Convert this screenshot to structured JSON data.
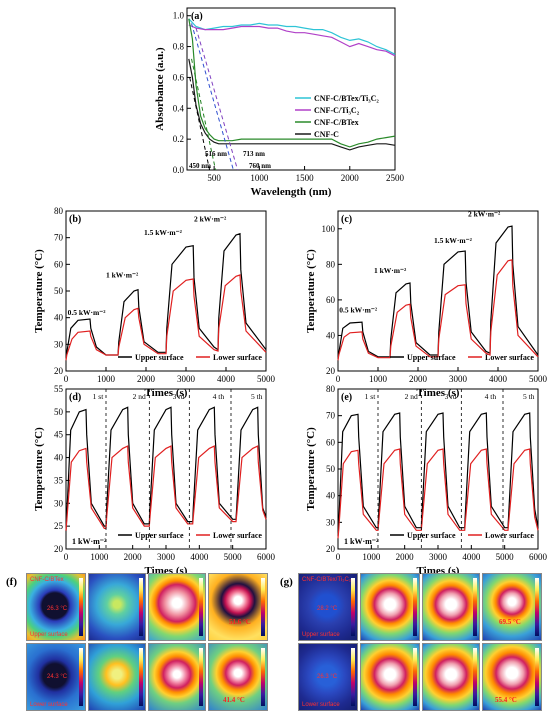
{
  "chart_data": [
    {
      "panel": "(a)",
      "type": "line",
      "xlabel": "Wavelength (nm)",
      "ylabel": "Absorbance (a.u.)",
      "xlim": [
        200,
        2500
      ],
      "ylim": [
        0,
        1.05
      ],
      "xticks": [
        500,
        1000,
        1500,
        2000,
        2500
      ],
      "yticks": [
        0.0,
        0.2,
        0.4,
        0.6,
        0.8,
        1.0
      ],
      "legend_position": "right",
      "series": [
        {
          "name": "CNF-C/BTex/Ti₃C₂",
          "color": "#2ec4d6",
          "x": [
            220,
            300,
            400,
            500,
            600,
            700,
            800,
            900,
            1000,
            1100,
            1200,
            1300,
            1400,
            1500,
            1600,
            1700,
            1800,
            1900,
            2000,
            2100,
            2200,
            2300,
            2400,
            2500
          ],
          "y": [
            0.98,
            0.93,
            0.91,
            0.92,
            0.93,
            0.93,
            0.94,
            0.94,
            0.95,
            0.94,
            0.94,
            0.93,
            0.93,
            0.92,
            0.91,
            0.91,
            0.89,
            0.86,
            0.84,
            0.85,
            0.83,
            0.8,
            0.78,
            0.75
          ]
        },
        {
          "name": "CNF-C/Ti₃C₂",
          "color": "#b040c8",
          "x": [
            220,
            300,
            400,
            500,
            600,
            700,
            800,
            900,
            1000,
            1100,
            1200,
            1300,
            1400,
            1500,
            1600,
            1700,
            1800,
            1900,
            2000,
            2100,
            2200,
            2300,
            2400,
            2500
          ],
          "y": [
            0.94,
            0.92,
            0.91,
            0.91,
            0.91,
            0.92,
            0.93,
            0.93,
            0.93,
            0.92,
            0.92,
            0.9,
            0.89,
            0.89,
            0.88,
            0.87,
            0.86,
            0.83,
            0.8,
            0.82,
            0.8,
            0.78,
            0.77,
            0.74
          ]
        },
        {
          "name": "CNF-C/BTex",
          "color": "#2a8a2a",
          "x": [
            220,
            260,
            300,
            350,
            400,
            450,
            500,
            550,
            600,
            700,
            800,
            1000,
            1200,
            1400,
            1600,
            1800,
            1900,
            2000,
            2100,
            2200,
            2300,
            2400,
            2500
          ],
          "y": [
            0.98,
            0.85,
            0.55,
            0.35,
            0.27,
            0.23,
            0.2,
            0.19,
            0.19,
            0.19,
            0.2,
            0.2,
            0.2,
            0.2,
            0.2,
            0.2,
            0.17,
            0.15,
            0.17,
            0.18,
            0.2,
            0.21,
            0.22
          ]
        },
        {
          "name": "CNF-C",
          "color": "#1a1a1a",
          "x": [
            220,
            260,
            300,
            350,
            400,
            450,
            500,
            550,
            600,
            700,
            800,
            1000,
            1200,
            1400,
            1600,
            1800,
            1900,
            2000,
            2100,
            2200,
            2300,
            2400,
            2500
          ],
          "y": [
            0.72,
            0.6,
            0.42,
            0.3,
            0.24,
            0.2,
            0.18,
            0.17,
            0.17,
            0.17,
            0.17,
            0.17,
            0.17,
            0.17,
            0.17,
            0.17,
            0.15,
            0.13,
            0.15,
            0.16,
            0.17,
            0.17,
            0.16
          ]
        }
      ],
      "annotations": [
        "450 nm",
        "516 nm",
        "713 nm",
        "760 nm"
      ]
    },
    {
      "panel": "(b)",
      "type": "line",
      "xlabel": "Times (s)",
      "ylabel": "Temperature (°C)",
      "xlim": [
        0,
        5000
      ],
      "ylim": [
        20,
        80
      ],
      "xticks": [
        0,
        1000,
        2000,
        3000,
        4000,
        5000
      ],
      "yticks": [
        20,
        30,
        40,
        50,
        60,
        70,
        80
      ],
      "legend_position": "bottom-right",
      "intensity_labels": [
        "0.5 kW·m⁻²",
        "1 kW·m⁻²",
        "1.5 kW·m⁻²",
        "2 kW·m⁻²"
      ],
      "series": [
        {
          "name": "Upper surface",
          "color": "#000000",
          "x": [
            0,
            20,
            120,
            300,
            600,
            620,
            760,
            1000,
            1300,
            1320,
            1450,
            1700,
            1800,
            1820,
            1950,
            2300,
            2500,
            2520,
            2650,
            3000,
            3180,
            3200,
            3330,
            3700,
            3800,
            3820,
            3950,
            4250,
            4350,
            4370,
            4500,
            5000
          ],
          "y": [
            25,
            27,
            36,
            39,
            39.5,
            36,
            29,
            26,
            26,
            31,
            46,
            50,
            50.5,
            44,
            31,
            27,
            27,
            36,
            60,
            66.5,
            67,
            55,
            36,
            29,
            28,
            40,
            65,
            71,
            71.5,
            58,
            38,
            28
          ]
        },
        {
          "name": "Lower surface",
          "color": "#e02020",
          "x": [
            0,
            20,
            150,
            300,
            600,
            620,
            760,
            1000,
            1300,
            1320,
            1480,
            1700,
            1800,
            1820,
            1950,
            2300,
            2500,
            2520,
            2680,
            3000,
            3180,
            3200,
            3330,
            3700,
            3800,
            3820,
            3980,
            4250,
            4350,
            4370,
            4500,
            5000
          ],
          "y": [
            24,
            26,
            32,
            34.5,
            35,
            33,
            28,
            26,
            26,
            29,
            40,
            43,
            43.5,
            40,
            30,
            26.5,
            26.5,
            33,
            50,
            54,
            54.5,
            48,
            33,
            28,
            27.5,
            36,
            52,
            55.5,
            56,
            50,
            35,
            27
          ]
        }
      ]
    },
    {
      "panel": "(c)",
      "type": "line",
      "xlabel": "Times (s)",
      "ylabel": "Temperature (°C)",
      "xlim": [
        0,
        5000
      ],
      "ylim": [
        20,
        110
      ],
      "xticks": [
        0,
        1000,
        2000,
        3000,
        4000,
        5000
      ],
      "yticks": [
        20,
        40,
        60,
        80,
        100
      ],
      "legend_position": "bottom-right",
      "intensity_labels": [
        "0.5 kW·m⁻²",
        "1 kW·m⁻²",
        "1.5 kW·m⁻²",
        "2 kW·m⁻²"
      ],
      "series": [
        {
          "name": "Upper surface",
          "color": "#000000",
          "x": [
            0,
            20,
            120,
            300,
            600,
            620,
            760,
            1000,
            1300,
            1320,
            1450,
            1700,
            1800,
            1820,
            1950,
            2300,
            2500,
            2520,
            2650,
            3000,
            3180,
            3200,
            3330,
            3700,
            3800,
            3820,
            3950,
            4250,
            4350,
            4370,
            4500,
            5000
          ],
          "y": [
            27,
            30,
            44,
            47,
            47.5,
            42,
            31,
            28,
            28,
            38,
            64,
            69,
            69.5,
            58,
            36,
            29,
            29,
            42,
            80,
            87,
            87.5,
            70,
            42,
            31,
            30,
            48,
            92,
            101,
            101.5,
            80,
            45,
            29
          ]
        },
        {
          "name": "Lower surface",
          "color": "#e02020",
          "x": [
            0,
            20,
            150,
            300,
            600,
            620,
            760,
            1000,
            1300,
            1320,
            1480,
            1700,
            1800,
            1820,
            1950,
            2300,
            2500,
            2520,
            2680,
            3000,
            3180,
            3200,
            3330,
            3700,
            3800,
            3820,
            3980,
            4250,
            4350,
            4370,
            4500,
            5000
          ],
          "y": [
            26,
            29,
            39,
            41.5,
            42,
            38,
            30,
            27.5,
            27.5,
            34,
            53,
            57,
            57.5,
            50,
            34,
            28,
            28,
            38,
            63,
            68,
            68.5,
            58,
            38,
            30,
            29,
            42,
            74,
            82,
            82.5,
            68,
            40,
            28
          ]
        }
      ]
    },
    {
      "panel": "(d)",
      "type": "line",
      "xlabel": "Times (s)",
      "ylabel": "Temperature (°C)",
      "xlim": [
        0,
        6000
      ],
      "ylim": [
        20,
        55
      ],
      "xticks": [
        0,
        1000,
        2000,
        3000,
        4000,
        5000,
        6000
      ],
      "yticks": [
        20,
        25,
        30,
        35,
        40,
        45,
        50,
        55
      ],
      "legend_position": "bottom-right",
      "intensity_label": "1 kW·m⁻²",
      "cycle_labels": [
        "1 st",
        "2 nd",
        "3 rd",
        "4 th",
        "5 th"
      ],
      "series": [
        {
          "name": "Upper surface",
          "color": "#000000",
          "x": [
            0,
            20,
            140,
            400,
            600,
            620,
            760,
            1150,
            1200,
            1220,
            1350,
            1700,
            1850,
            1870,
            2000,
            2350,
            2500,
            2520,
            2650,
            3000,
            3150,
            3170,
            3300,
            3650,
            3800,
            3820,
            3950,
            4300,
            4450,
            4470,
            4600,
            5000,
            5100,
            5120,
            5250,
            5600,
            5750,
            5770,
            5900,
            6000
          ],
          "y": [
            24,
            27,
            46,
            50,
            50.5,
            45,
            30,
            25,
            25,
            29,
            46,
            50.5,
            51,
            45,
            30,
            25.5,
            25.5,
            29,
            46,
            50.5,
            51,
            45,
            30,
            26,
            26,
            29,
            46,
            50.5,
            51,
            45,
            30,
            26.5,
            26.5,
            29,
            46,
            50.5,
            51,
            45,
            29,
            27
          ]
        },
        {
          "name": "Lower surface",
          "color": "#e02020",
          "x": [
            0,
            20,
            160,
            400,
            600,
            620,
            760,
            1150,
            1200,
            1220,
            1380,
            1700,
            1850,
            1870,
            2000,
            2350,
            2500,
            2520,
            2680,
            3000,
            3150,
            3170,
            3300,
            3650,
            3800,
            3820,
            3980,
            4300,
            4450,
            4470,
            4600,
            5000,
            5100,
            5120,
            5280,
            5600,
            5750,
            5770,
            5900,
            6000
          ],
          "y": [
            24,
            26,
            39,
            41.5,
            42,
            39,
            29,
            24.5,
            24.5,
            27,
            40,
            42,
            42.5,
            39,
            29,
            25,
            25,
            27,
            40,
            42,
            42.5,
            39,
            29,
            25.5,
            25.5,
            27,
            40,
            42,
            42.5,
            39,
            29,
            26,
            26,
            27.5,
            40,
            42,
            42.5,
            39,
            28.5,
            26.5
          ]
        }
      ]
    },
    {
      "panel": "(e)",
      "type": "line",
      "xlabel": "Times (s)",
      "ylabel": "Temperature (°C)",
      "xlim": [
        0,
        6000
      ],
      "ylim": [
        20,
        80
      ],
      "xticks": [
        0,
        1000,
        2000,
        3000,
        4000,
        5000,
        6000
      ],
      "yticks": [
        20,
        30,
        40,
        50,
        60,
        70,
        80
      ],
      "legend_position": "bottom-right",
      "intensity_label": "1 kW·m⁻²",
      "cycle_labels": [
        "1 st",
        "2 nd",
        "3 rd",
        "4 th",
        "5 th"
      ],
      "series": [
        {
          "name": "Upper surface",
          "color": "#000000",
          "x": [
            0,
            20,
            140,
            400,
            600,
            620,
            760,
            1150,
            1200,
            1220,
            1350,
            1700,
            1850,
            1870,
            2000,
            2350,
            2500,
            2520,
            2650,
            3000,
            3150,
            3170,
            3300,
            3650,
            3800,
            3820,
            3950,
            4300,
            4450,
            4470,
            4600,
            5000,
            5100,
            5120,
            5250,
            5600,
            5750,
            5770,
            5900,
            6000
          ],
          "y": [
            25,
            29,
            64,
            70,
            70.5,
            62,
            36,
            28,
            28,
            33,
            64,
            70.5,
            71,
            62,
            36,
            28,
            28,
            33,
            64,
            70.5,
            71,
            62,
            36,
            28,
            28,
            33,
            64,
            70.5,
            71,
            62,
            36,
            28,
            28,
            33,
            64,
            70.5,
            71,
            62,
            35,
            28
          ]
        },
        {
          "name": "Lower surface",
          "color": "#e02020",
          "x": [
            0,
            20,
            160,
            400,
            600,
            620,
            760,
            1150,
            1200,
            1220,
            1380,
            1700,
            1850,
            1870,
            2000,
            2350,
            2500,
            2520,
            2680,
            3000,
            3150,
            3170,
            3300,
            3650,
            3800,
            3820,
            3980,
            4300,
            4450,
            4470,
            4600,
            5000,
            5100,
            5120,
            5280,
            5600,
            5750,
            5770,
            5900,
            6000
          ],
          "y": [
            24,
            27,
            52,
            56.5,
            57,
            52,
            33,
            27,
            27,
            30,
            52,
            57,
            57.5,
            52,
            33,
            27,
            27,
            30,
            52,
            57,
            57.5,
            52,
            33,
            27,
            27,
            30,
            52,
            57,
            57.5,
            52,
            33,
            27,
            27,
            30,
            52,
            57,
            57.5,
            52,
            32,
            27
          ]
        }
      ]
    }
  ],
  "thermal_panels": {
    "f": {
      "label": "(f)",
      "top_tag": "CNF-C/BTex",
      "upper_label": "Upper surface",
      "lower_label": "Lower surface",
      "first_upper_temp": "26.3 °C",
      "last_upper_temp": "51.6 °C",
      "first_lower_temp": "24.3 °C",
      "last_lower_temp": "41.4 °C"
    },
    "g": {
      "label": "(g)",
      "top_tag": "CNF-C/BTex/Ti₃C₂",
      "upper_label": "Upper surface",
      "lower_label": "Lower surface",
      "first_upper_temp": "28.2 °C",
      "last_upper_temp": "69.5 °C",
      "first_lower_temp": "26.3 °C",
      "last_lower_temp": "55.4 °C"
    }
  }
}
